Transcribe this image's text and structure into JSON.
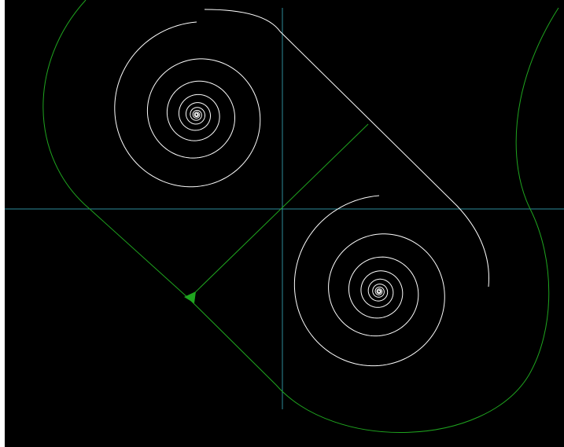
{
  "diagram": {
    "type": "euler-spiral-track",
    "background_color": "#000000",
    "frame_color": "#ffffff",
    "spiral_color": "#ffffff",
    "track_color": "#1fa51f",
    "axis_color": "#2e8b9a",
    "axes": [
      {
        "name": "horizontal-axis"
      },
      {
        "name": "vertical-axis"
      }
    ],
    "spirals": [
      {
        "name": "upper-left-spiral"
      },
      {
        "name": "lower-right-spiral"
      }
    ]
  }
}
